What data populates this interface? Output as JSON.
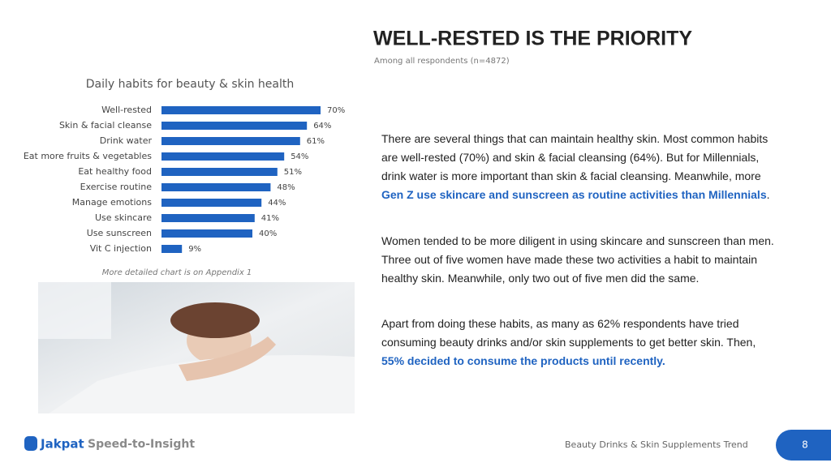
{
  "header": {
    "title": "WELL-RESTED IS THE PRIORITY",
    "subtitle": "Among all respondents (n=4872)"
  },
  "chart_data": {
    "type": "hbar",
    "title": "Daily habits for beauty & skin health",
    "categories": [
      "Well-rested",
      "Skin & facial cleanse",
      "Drink water",
      "Eat more fruits & vegetables",
      "Eat healthy food",
      "Exercise routine",
      "Manage emotions",
      "Use skincare",
      "Use sunscreen",
      "Vit C injection"
    ],
    "values": [
      70,
      64,
      61,
      54,
      51,
      48,
      44,
      41,
      40,
      9
    ],
    "value_labels": [
      "70%",
      "64%",
      "61%",
      "54%",
      "51%",
      "48%",
      "44%",
      "41%",
      "40%",
      "9%"
    ],
    "color": "#1f63c1",
    "note": "More detailed chart is on Appendix 1"
  },
  "body": {
    "paragraphs": [
      {
        "segments": [
          {
            "text": "There are several things that can maintain healthy skin. Most common habits are well-rested (70%) and skin & facial cleansing (64%).  But for Millennials, drink water is more important than skin & facial cleansing. Meanwhile, more "
          },
          {
            "text": "Gen Z use skincare and sunscreen as routine activities than Millennials",
            "emphasis": true
          },
          {
            "text": "."
          }
        ]
      },
      {
        "segments": [
          {
            "text": "Women tended to be more diligent in using skincare and sunscreen than men. Three out of five women have made these two activities a habit to maintain healthy skin. Meanwhile, only two out of five men did the same."
          }
        ]
      },
      {
        "segments": [
          {
            "text": "Apart from doing these habits, as many as 62% respondents have tried consuming beauty drinks and/or skin supplements to get better skin. Then, "
          },
          {
            "text": "55% decided to consume the products until recently.",
            "emphasis": true
          }
        ]
      }
    ]
  },
  "footer": {
    "brand": "Jakpat",
    "tagline": "Speed-to-Insight",
    "report": "Beauty Drinks & Skin Supplements  Trend",
    "page": "8"
  }
}
